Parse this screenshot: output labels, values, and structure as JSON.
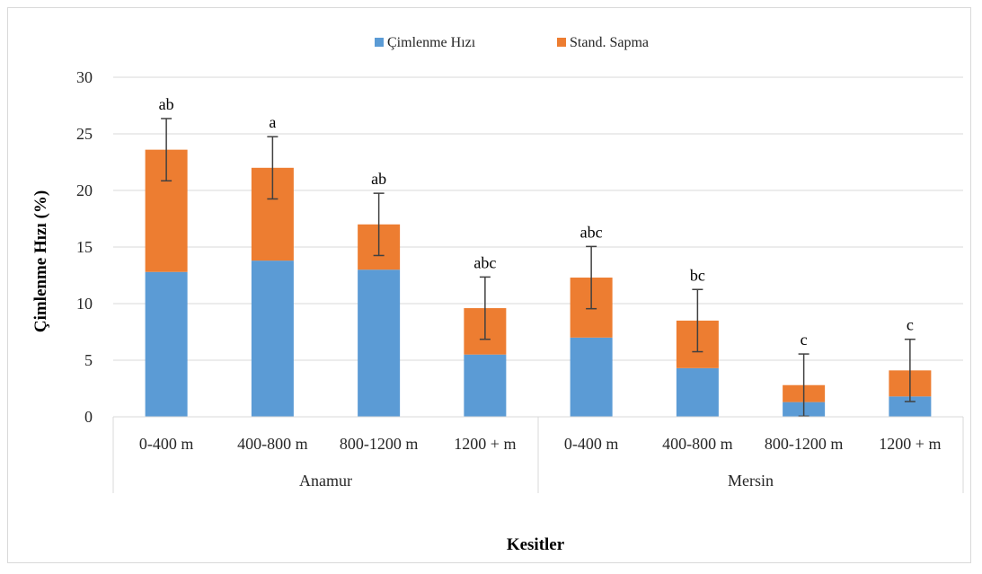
{
  "chart_data": {
    "type": "bar",
    "stacked": true,
    "categories": [
      {
        "label": "0-400 m",
        "group": "Anamur"
      },
      {
        "label": "400-800 m",
        "group": "Anamur"
      },
      {
        "label": "800-1200 m",
        "group": "Anamur"
      },
      {
        "label": "1200 + m",
        "group": "Anamur"
      },
      {
        "label": "0-400 m",
        "group": "Mersin"
      },
      {
        "label": "400-800 m",
        "group": "Mersin"
      },
      {
        "label": "800-1200 m",
        "group": "Mersin"
      },
      {
        "label": "1200 + m",
        "group": "Mersin"
      }
    ],
    "groups": [
      "Anamur",
      "Mersin"
    ],
    "series": [
      {
        "name": "Çimlenme Hızı",
        "color": "#5b9bd5",
        "values": [
          12.8,
          13.8,
          13.0,
          5.5,
          7.0,
          4.3,
          1.3,
          1.8
        ]
      },
      {
        "name": "Stand. Sapma",
        "color": "#ed7d31",
        "values": [
          10.8,
          8.2,
          4.0,
          4.1,
          5.3,
          4.2,
          1.5,
          2.3
        ]
      }
    ],
    "error_bar_half_width": 2.75,
    "significance_letters": [
      "ab",
      "a",
      "ab",
      "abc",
      "abc",
      "bc",
      "c",
      "c"
    ],
    "ylabel": "Çimlenme Hızı (%)",
    "xlabel": "Kesitler",
    "ylim": [
      0,
      30
    ],
    "yticks": [
      "0",
      "5",
      "10",
      "15",
      "20",
      "25",
      "30"
    ],
    "grid": true,
    "legend_position": "top"
  }
}
